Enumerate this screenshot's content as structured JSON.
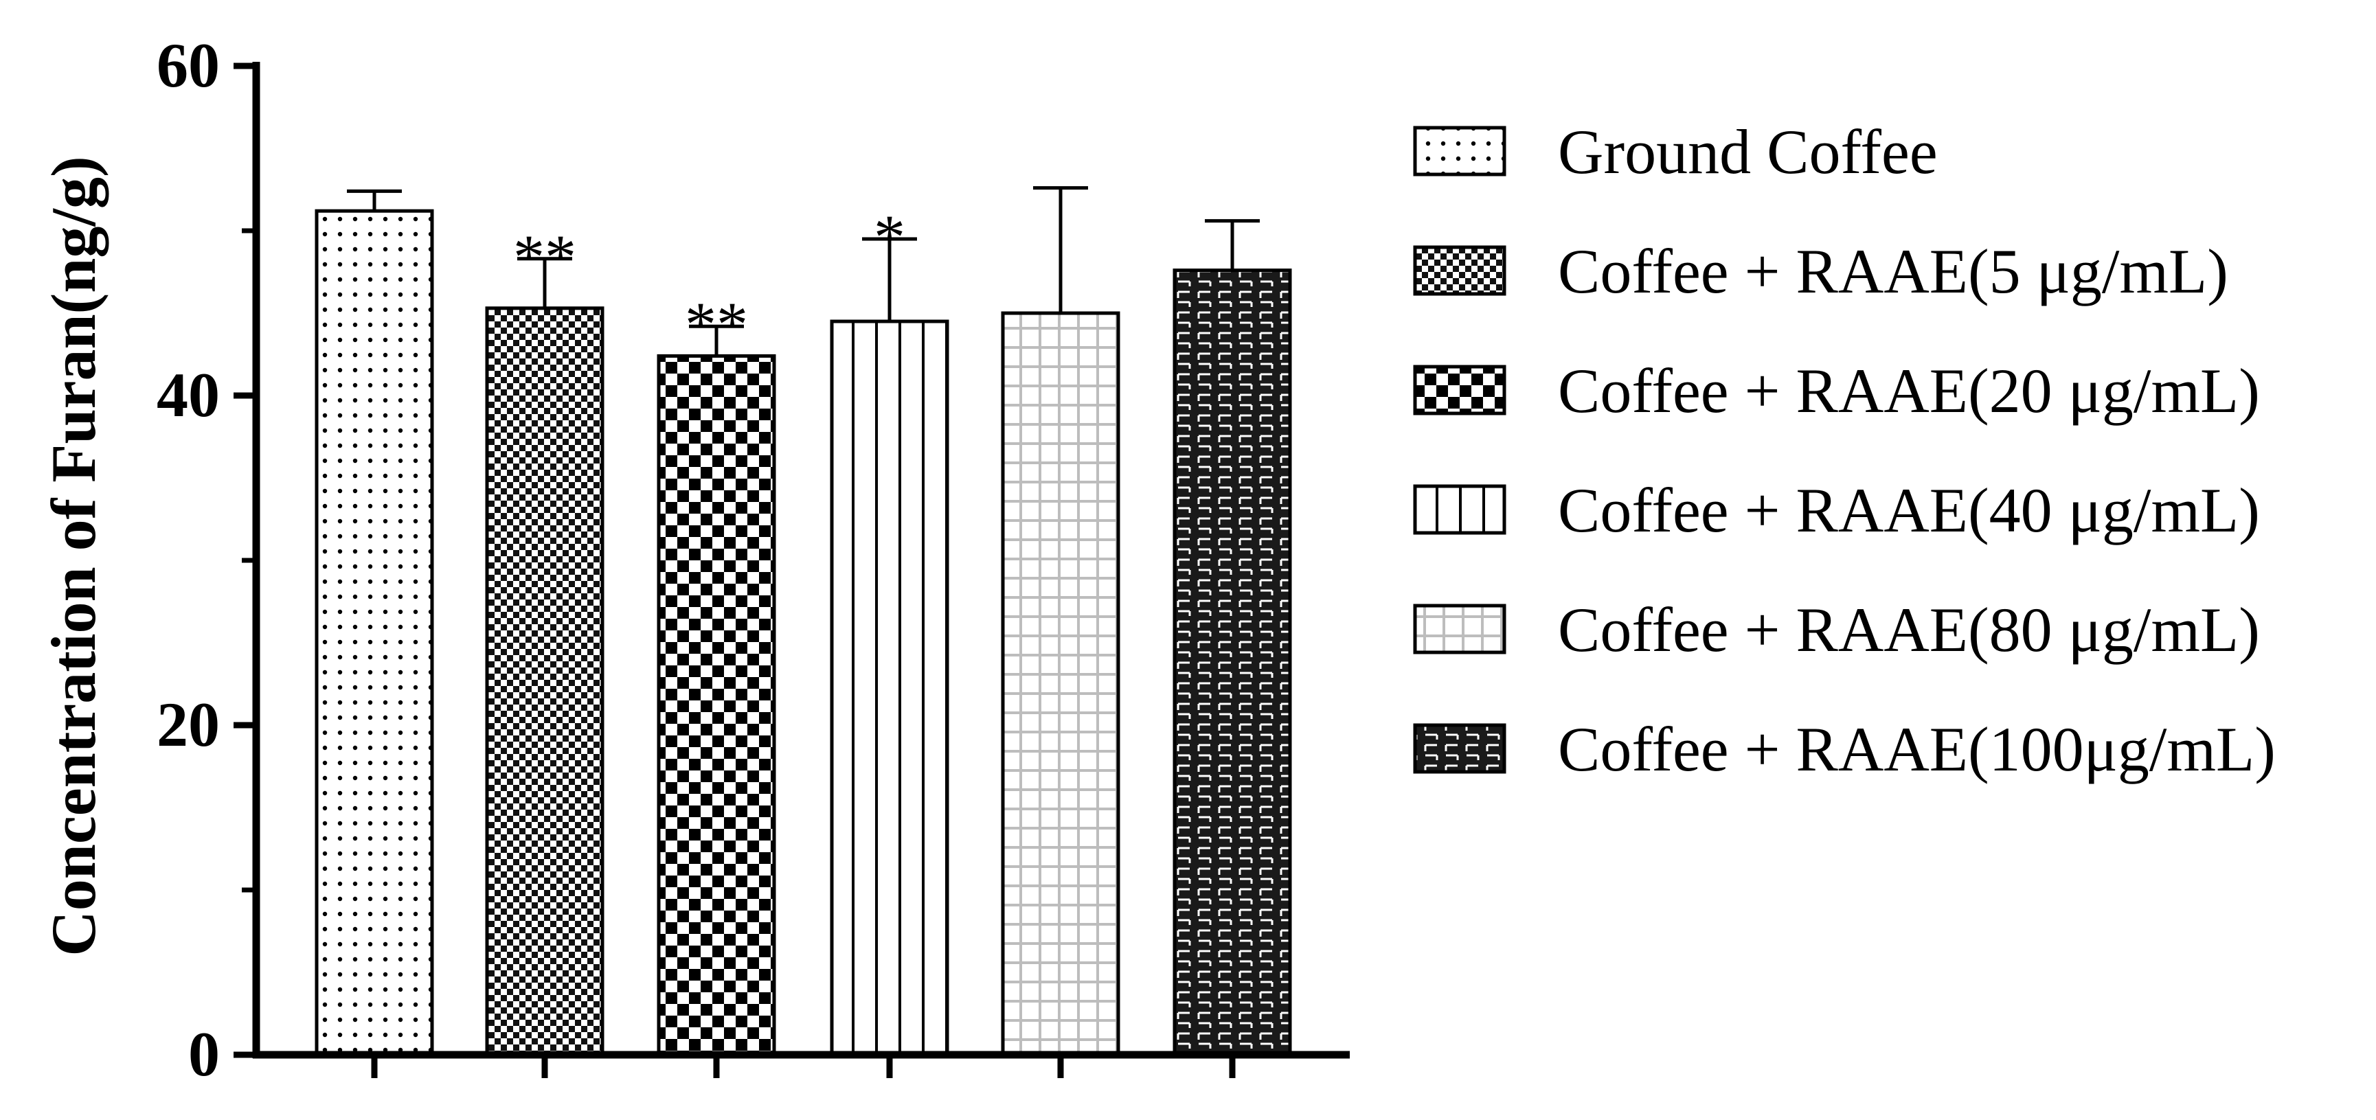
{
  "chart_data": {
    "type": "bar",
    "title": "",
    "xlabel": "",
    "ylabel": "Concentration of Furan(ng/g)",
    "ylim": [
      0,
      60
    ],
    "yticks": [
      0,
      20,
      40,
      60
    ],
    "grid": false,
    "legend_position": "right",
    "categories": [
      "Ground Coffee",
      "Coffee + RAAE(5 μg/mL)",
      "Coffee + RAAE(20 μg/mL)",
      "Coffee + RAAE(40 μg/mL)",
      "Coffee + RAAE(80 μg/mL)",
      "Coffee + RAAE(100μg/mL)"
    ],
    "values": [
      51.2,
      45.3,
      42.4,
      44.5,
      45.0,
      47.6
    ],
    "error": [
      1.2,
      3.0,
      1.8,
      5.0,
      7.6,
      3.0
    ],
    "significance": [
      "",
      "**",
      "**",
      "*",
      "",
      ""
    ],
    "patterns": [
      "dots",
      "fine-check",
      "checker",
      "vertical-lines",
      "grid",
      "brick"
    ]
  }
}
